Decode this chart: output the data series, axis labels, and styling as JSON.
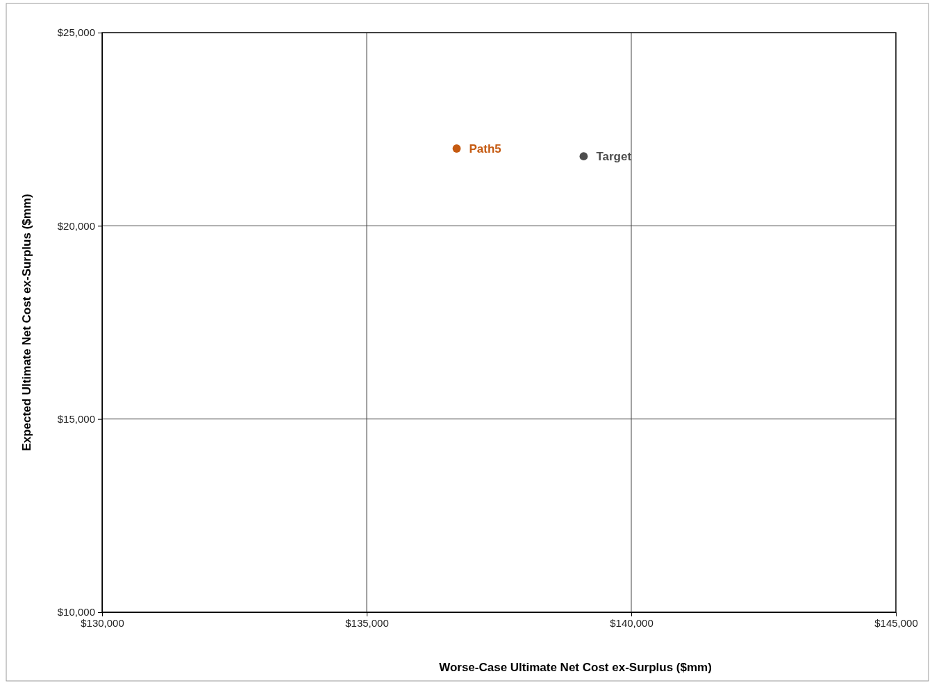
{
  "chart_data": {
    "type": "scatter",
    "xlabel": "Worse-Case Ultimate Net Cost ex-Surplus ($mm)",
    "ylabel": "Expected Ultimate Net Cost ex-Surplus ($mm)",
    "xlim": [
      130000,
      145000
    ],
    "xticks": [
      {
        "value": 130000,
        "label": "$130,000"
      },
      {
        "value": 135000,
        "label": "$135,000"
      },
      {
        "value": 140000,
        "label": "$140,000"
      },
      {
        "value": 145000,
        "label": "$145,000"
      }
    ],
    "ylim": [
      10000,
      25000
    ],
    "yticks": [
      {
        "value": 10000,
        "label": "$10,000"
      },
      {
        "value": 15000,
        "label": "$15,000"
      },
      {
        "value": 20000,
        "label": "$20,000"
      },
      {
        "value": 25000,
        "label": "$25,000"
      }
    ],
    "grid": true,
    "legend": false,
    "marker": "circle",
    "series": [
      {
        "name": "Path5",
        "color": "#c55a11",
        "x": [
          136700
        ],
        "values": [
          22000
        ]
      },
      {
        "name": "Target",
        "color": "#4d4d4d",
        "x": [
          139100
        ],
        "values": [
          21800
        ]
      }
    ]
  }
}
